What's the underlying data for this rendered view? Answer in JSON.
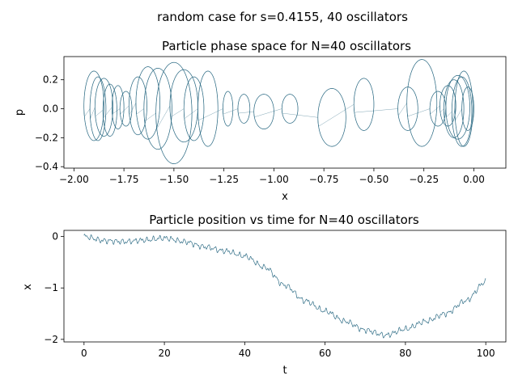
{
  "suptitle": "random case for s=0.4155, 40 oscillators",
  "colors": {
    "line": "#2f6d86",
    "axes": "#000000",
    "background": "#ffffff"
  },
  "chart_data": [
    {
      "type": "line",
      "title": "Particle phase space for N=40 oscillators",
      "xlabel": "x",
      "ylabel": "p",
      "xlim": [
        -2.05,
        0.16
      ],
      "ylim": [
        -0.41,
        0.36
      ],
      "xticks": [
        -2.0,
        -1.75,
        -1.5,
        -1.25,
        -1.0,
        -0.75,
        -0.5,
        -0.25,
        0.0
      ],
      "xtick_labels": [
        "−2.00",
        "−1.75",
        "−1.50",
        "−1.25",
        "−1.00",
        "−0.75",
        "−0.50",
        "−0.25",
        "0.00"
      ],
      "yticks": [
        -0.4,
        -0.2,
        0.0,
        0.2
      ],
      "ytick_labels": [
        "−0.4",
        "−0.2",
        "0.0",
        "0.2"
      ],
      "grid": false,
      "legend": "none",
      "series": [
        {
          "description": "trajectory loops in (x, p) phase space",
          "loops": [
            {
              "cx": -1.9,
              "cy": 0.02,
              "rx": 0.05,
              "ry": 0.24
            },
            {
              "cx": -1.88,
              "cy": 0.0,
              "rx": 0.04,
              "ry": 0.22
            },
            {
              "cx": -1.85,
              "cy": 0.01,
              "rx": 0.045,
              "ry": 0.2
            },
            {
              "cx": -1.82,
              "cy": -0.01,
              "rx": 0.035,
              "ry": 0.18
            },
            {
              "cx": -1.78,
              "cy": 0.01,
              "rx": 0.03,
              "ry": 0.15
            },
            {
              "cx": -1.74,
              "cy": 0.0,
              "rx": 0.03,
              "ry": 0.12
            },
            {
              "cx": -1.68,
              "cy": 0.02,
              "rx": 0.045,
              "ry": 0.2
            },
            {
              "cx": -1.63,
              "cy": 0.04,
              "rx": 0.06,
              "ry": 0.25
            },
            {
              "cx": -1.58,
              "cy": 0.0,
              "rx": 0.07,
              "ry": 0.28
            },
            {
              "cx": -1.5,
              "cy": -0.03,
              "rx": 0.09,
              "ry": 0.35
            },
            {
              "cx": -1.45,
              "cy": 0.02,
              "rx": 0.07,
              "ry": 0.25
            },
            {
              "cx": -1.4,
              "cy": 0.0,
              "rx": 0.05,
              "ry": 0.22
            },
            {
              "cx": -1.33,
              "cy": 0.0,
              "rx": 0.05,
              "ry": 0.26
            },
            {
              "cx": -1.23,
              "cy": 0.0,
              "rx": 0.025,
              "ry": 0.12
            },
            {
              "cx": -1.15,
              "cy": 0.0,
              "rx": 0.03,
              "ry": 0.1
            },
            {
              "cx": -1.05,
              "cy": -0.02,
              "rx": 0.05,
              "ry": 0.12
            },
            {
              "cx": -0.92,
              "cy": 0.0,
              "rx": 0.04,
              "ry": 0.1
            },
            {
              "cx": -0.71,
              "cy": -0.06,
              "rx": 0.07,
              "ry": 0.2
            },
            {
              "cx": -0.55,
              "cy": 0.03,
              "rx": 0.05,
              "ry": 0.18
            },
            {
              "cx": -0.33,
              "cy": 0.0,
              "rx": 0.05,
              "ry": 0.15
            },
            {
              "cx": -0.26,
              "cy": 0.04,
              "rx": 0.075,
              "ry": 0.3
            },
            {
              "cx": -0.18,
              "cy": 0.0,
              "rx": 0.04,
              "ry": 0.12
            },
            {
              "cx": -0.13,
              "cy": 0.02,
              "rx": 0.04,
              "ry": 0.14
            },
            {
              "cx": -0.1,
              "cy": 0.0,
              "rx": 0.05,
              "ry": 0.2
            },
            {
              "cx": -0.08,
              "cy": 0.01,
              "rx": 0.06,
              "ry": 0.22
            },
            {
              "cx": -0.06,
              "cy": -0.02,
              "rx": 0.05,
              "ry": 0.24
            },
            {
              "cx": -0.05,
              "cy": 0.0,
              "rx": 0.045,
              "ry": 0.26
            },
            {
              "cx": -0.03,
              "cy": 0.0,
              "rx": 0.03,
              "ry": 0.15
            }
          ]
        }
      ]
    },
    {
      "type": "line",
      "title": "Particle position vs time for N=40 oscillators",
      "xlabel": "t",
      "ylabel": "x",
      "xlim": [
        -5,
        105
      ],
      "ylim": [
        -2.05,
        0.12
      ],
      "xticks": [
        0,
        20,
        40,
        60,
        80,
        100
      ],
      "xtick_labels": [
        "0",
        "20",
        "40",
        "60",
        "80",
        "100"
      ],
      "yticks": [
        -2,
        -1,
        0
      ],
      "ytick_labels": [
        "−2",
        "−1",
        "0"
      ],
      "grid": false,
      "legend": "none",
      "series": [
        {
          "x": [
            0,
            5,
            10,
            15,
            20,
            25,
            30,
            35,
            40,
            45,
            50,
            55,
            60,
            65,
            70,
            75,
            80,
            85,
            90,
            95,
            100
          ],
          "y": [
            0.0,
            -0.08,
            -0.1,
            -0.07,
            -0.03,
            -0.1,
            -0.2,
            -0.28,
            -0.38,
            -0.6,
            -0.95,
            -1.25,
            -1.45,
            -1.65,
            -1.82,
            -1.92,
            -1.8,
            -1.65,
            -1.5,
            -1.25,
            -0.88
          ]
        }
      ]
    }
  ]
}
